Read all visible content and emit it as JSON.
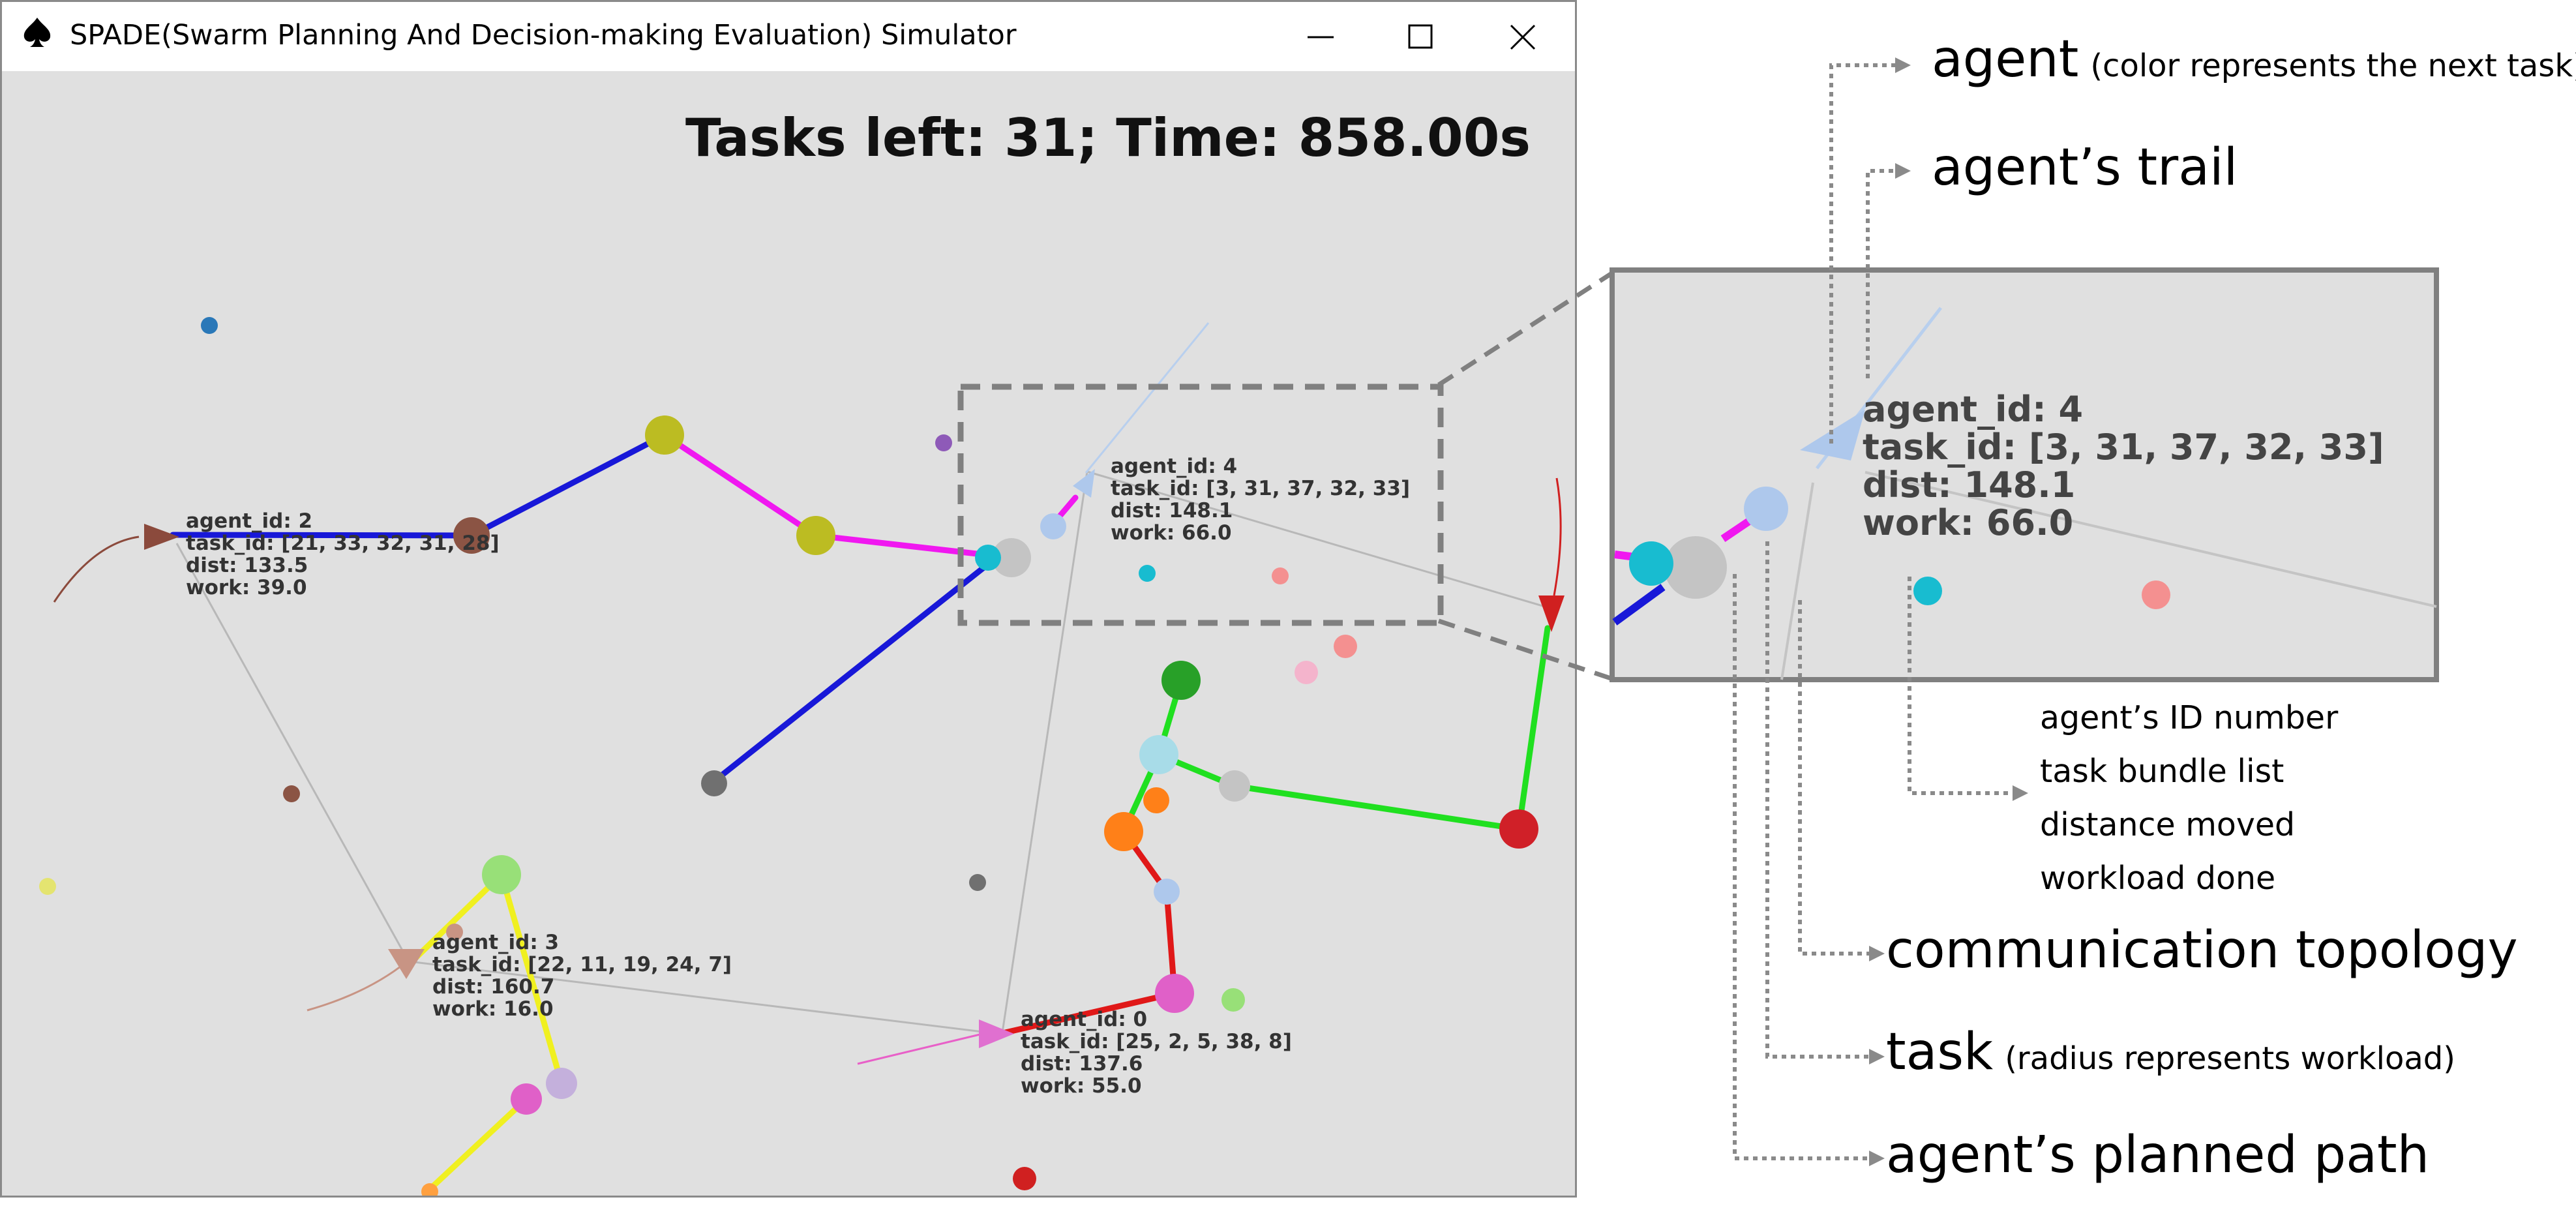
{
  "window": {
    "title": "SPADE(Swarm Planning And Decision-making Evaluation) Simulator",
    "app_icon": "spade-icon",
    "controls": [
      "minimize-icon",
      "maximize-icon",
      "close-icon"
    ]
  },
  "status": {
    "text": "Tasks left: 31; Time: 858.00s"
  },
  "agents": [
    {
      "id_line": "agent_id: 2",
      "task_line": "task_id: [21, 33, 32, 31, 28]",
      "dist_line": "dist: 133.5",
      "work_line": "work: 39.0"
    },
    {
      "id_line": "agent_id: 4",
      "task_line": "task_id: [3, 31, 37, 32, 33]",
      "dist_line": "dist: 148.1",
      "work_line": "work: 66.0"
    },
    {
      "id_line": "agent_id: 3",
      "task_line": "task_id: [22, 11, 19, 24, 7]",
      "dist_line": "dist: 160.7",
      "work_line": "work: 16.0"
    },
    {
      "id_line": "agent_id: 0",
      "task_line": "task_id: [25, 2, 5, 38, 8]",
      "dist_line": "dist: 137.6",
      "work_line": "work: 55.0"
    }
  ],
  "zoom": {
    "id_line": "agent_id: 4",
    "task_line": "task_id: [3, 31, 37, 32, 33]",
    "dist_line": "dist: 148.1",
    "work_line": "work: 66.0"
  },
  "annotations": {
    "agent": "agent",
    "agent_note": "(color represents the next task)",
    "trail": "agent’s trail",
    "info": [
      "agent’s ID number",
      "task bundle list",
      "distance moved",
      "workload done"
    ],
    "topology": "communication topology",
    "task": "task",
    "task_note": "(radius represents workload)",
    "planned_path": "agent’s planned path"
  },
  "colors": {
    "canvas_bg": "#e0e0e0",
    "path_blue": "#1818d8",
    "path_magenta": "#f018f0",
    "path_green": "#20e020",
    "path_red": "#e01818",
    "path_yellow": "#f0f020",
    "topology_gray": "#c0c0c0",
    "dashed_box": "#808080",
    "leader_dots": "#808080"
  }
}
